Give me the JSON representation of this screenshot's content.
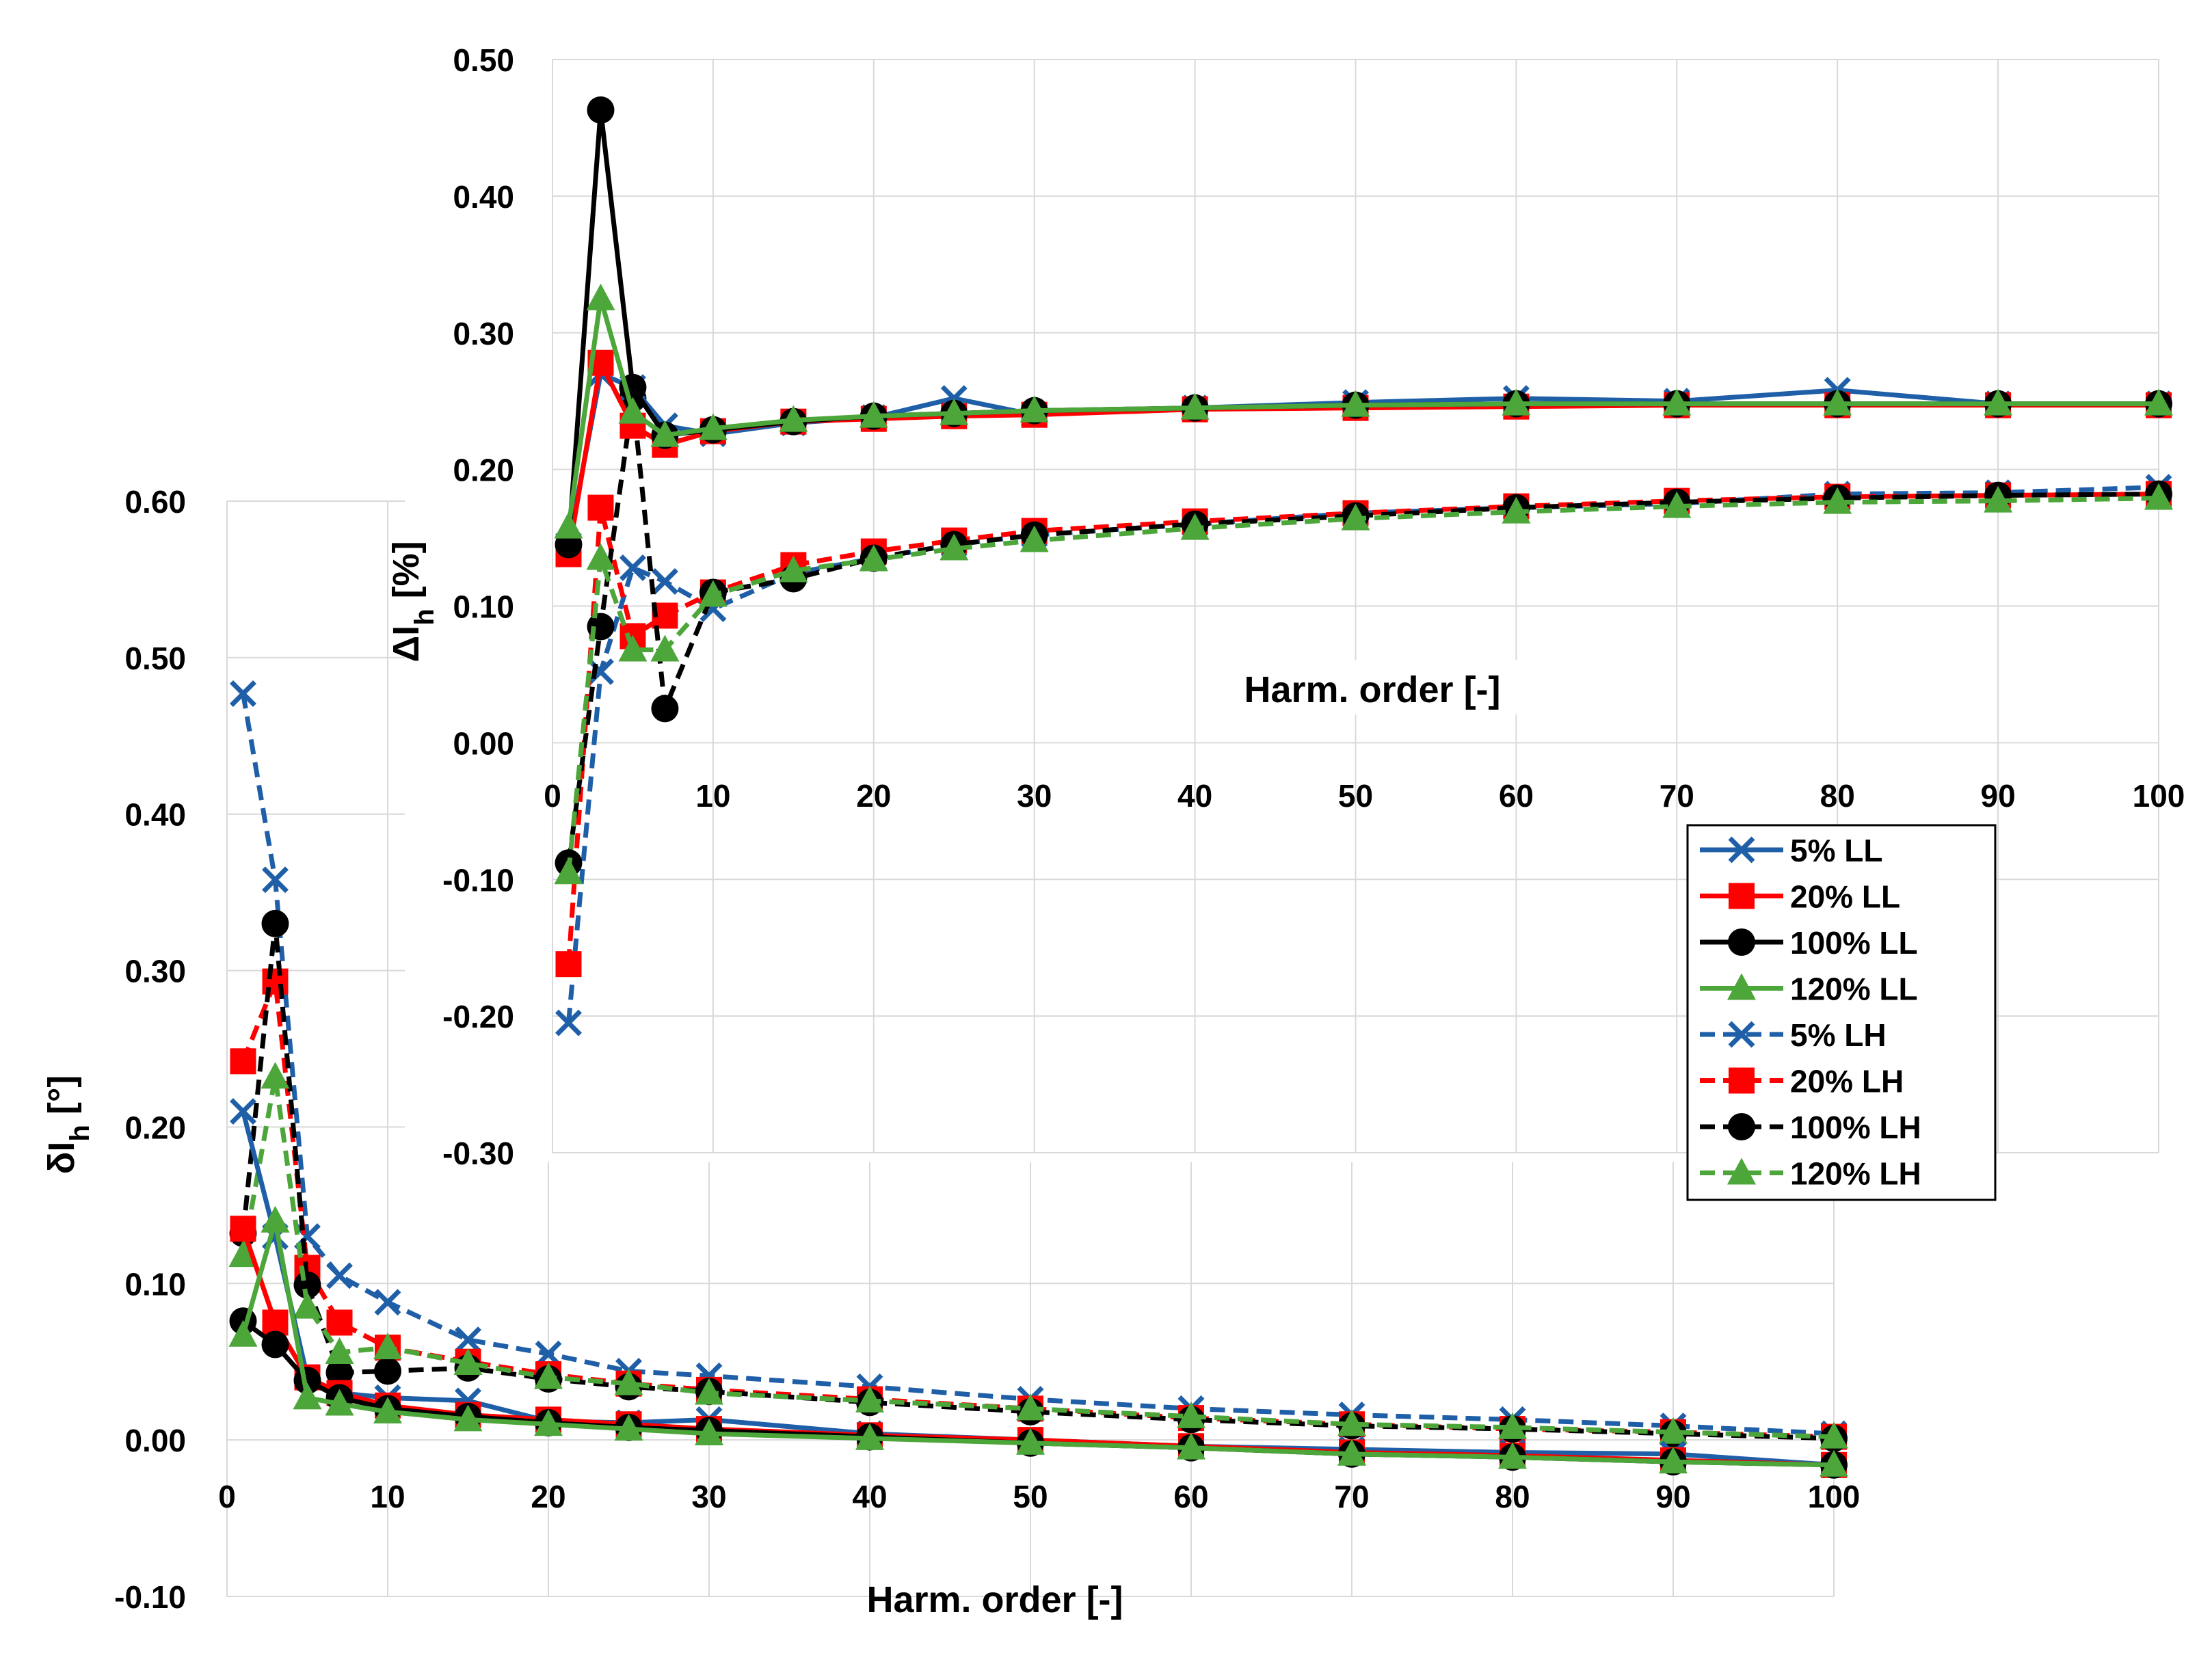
{
  "chart_data": [
    {
      "id": "bottom",
      "type": "line",
      "title": "",
      "xlabel": "Harm. order [-]",
      "ylabel_main": "δI",
      "ylabel_sub": "h",
      "ylabel_unit": " [°]",
      "xlim": [
        0,
        100
      ],
      "ylim": [
        -0.1,
        0.6
      ],
      "xticks": [
        0,
        10,
        20,
        30,
        40,
        50,
        60,
        70,
        80,
        90,
        100
      ],
      "yticks": [
        -0.1,
        0.0,
        0.1,
        0.2,
        0.3,
        0.4,
        0.5,
        0.6
      ],
      "ytick_labels": [
        "-0.10",
        "0.00",
        "0.10",
        "0.20",
        "0.30",
        "0.40",
        "0.50",
        "0.60"
      ],
      "grid": true,
      "x": [
        1,
        3,
        5,
        7,
        10,
        15,
        20,
        25,
        30,
        40,
        50,
        60,
        70,
        80,
        90,
        100
      ],
      "series": [
        {
          "name": "5%  LL",
          "color": "#1f5fa8",
          "marker": "x",
          "dash": false,
          "values": [
            0.21,
            0.13,
            0.04,
            0.03,
            0.027,
            0.025,
            0.012,
            0.011,
            0.013,
            0.004,
            0.0,
            -0.004,
            -0.006,
            -0.008,
            -0.009,
            -0.016
          ]
        },
        {
          "name": "20% LL",
          "color": "#ff0000",
          "marker": "square",
          "dash": false,
          "values": [
            0.135,
            0.075,
            0.04,
            0.03,
            0.022,
            0.016,
            0.013,
            0.01,
            0.007,
            0.003,
            0.0,
            -0.004,
            -0.008,
            -0.01,
            -0.013,
            -0.016
          ]
        },
        {
          "name": "100% LL",
          "color": "#000000",
          "marker": "circle",
          "dash": false,
          "values": [
            0.076,
            0.061,
            0.038,
            0.027,
            0.02,
            0.015,
            0.011,
            0.008,
            0.006,
            0.002,
            -0.002,
            -0.005,
            -0.009,
            -0.011,
            -0.014,
            -0.016
          ]
        },
        {
          "name": "120%  LL",
          "color": "#4ca63a",
          "marker": "triangle",
          "dash": false,
          "values": [
            0.067,
            0.14,
            0.027,
            0.023,
            0.018,
            0.013,
            0.01,
            0.007,
            0.004,
            0.001,
            -0.002,
            -0.005,
            -0.009,
            -0.011,
            -0.014,
            -0.016
          ]
        },
        {
          "name": "5%  LH",
          "color": "#1f5fa8",
          "marker": "x",
          "dash": true,
          "values": [
            0.477,
            0.358,
            0.13,
            0.105,
            0.088,
            0.064,
            0.055,
            0.044,
            0.041,
            0.034,
            0.026,
            0.02,
            0.016,
            0.013,
            0.009,
            0.004
          ]
        },
        {
          "name": "20% LH",
          "color": "#ff0000",
          "marker": "square",
          "dash": true,
          "values": [
            0.242,
            0.293,
            0.11,
            0.075,
            0.059,
            0.05,
            0.042,
            0.036,
            0.032,
            0.026,
            0.02,
            0.014,
            0.01,
            0.007,
            0.005,
            0.002
          ]
        },
        {
          "name": "100% LH",
          "color": "#000000",
          "marker": "circle",
          "dash": true,
          "values": [
            0.132,
            0.33,
            0.099,
            0.043,
            0.044,
            0.046,
            0.039,
            0.034,
            0.031,
            0.024,
            0.018,
            0.013,
            0.009,
            0.007,
            0.004,
            0.001
          ]
        },
        {
          "name": "120%  LH",
          "color": "#4ca63a",
          "marker": "triangle",
          "dash": true,
          "values": [
            0.118,
            0.232,
            0.085,
            0.056,
            0.059,
            0.049,
            0.04,
            0.036,
            0.03,
            0.025,
            0.02,
            0.015,
            0.01,
            0.008,
            0.005,
            0.002
          ]
        }
      ]
    },
    {
      "id": "top",
      "type": "line",
      "title": "",
      "xlabel": "Harm. order [-]",
      "ylabel_main": "ΔI",
      "ylabel_sub": "h",
      "ylabel_unit": " [%]",
      "xlim": [
        0,
        100
      ],
      "ylim": [
        -0.3,
        0.5
      ],
      "xticks": [
        0,
        10,
        20,
        30,
        40,
        50,
        60,
        70,
        80,
        90,
        100
      ],
      "yticks": [
        -0.3,
        -0.2,
        -0.1,
        0.0,
        0.1,
        0.2,
        0.3,
        0.4,
        0.5
      ],
      "ytick_labels": [
        "-0.30",
        "-0.20",
        "-0.10",
        "0.00",
        "0.10",
        "0.20",
        "0.30",
        "0.40",
        "0.50"
      ],
      "grid": true,
      "legend": "bottom-right",
      "x": [
        1,
        3,
        5,
        7,
        10,
        15,
        20,
        25,
        30,
        40,
        50,
        60,
        70,
        80,
        90,
        100
      ],
      "series": [
        {
          "name": "5%  LL",
          "color": "#1f5fa8",
          "marker": "x",
          "dash": false,
          "values": [
            0.145,
            0.27,
            0.26,
            0.232,
            0.226,
            0.234,
            0.238,
            0.252,
            0.24,
            0.245,
            0.249,
            0.252,
            0.25,
            0.258,
            0.248,
            0.248
          ]
        },
        {
          "name": "20% LL",
          "color": "#ff0000",
          "marker": "square",
          "dash": false,
          "values": [
            0.138,
            0.278,
            0.232,
            0.218,
            0.228,
            0.235,
            0.237,
            0.239,
            0.24,
            0.244,
            0.245,
            0.246,
            0.247,
            0.247,
            0.247,
            0.247
          ]
        },
        {
          "name": "100% LL",
          "color": "#000000",
          "marker": "circle",
          "dash": false,
          "values": [
            0.145,
            0.463,
            0.26,
            0.225,
            0.229,
            0.235,
            0.239,
            0.241,
            0.243,
            0.245,
            0.247,
            0.248,
            0.248,
            0.248,
            0.248,
            0.248
          ]
        },
        {
          "name": "120%  LL",
          "color": "#4ca63a",
          "marker": "triangle",
          "dash": false,
          "values": [
            0.158,
            0.325,
            0.242,
            0.225,
            0.23,
            0.236,
            0.239,
            0.241,
            0.243,
            0.245,
            0.247,
            0.248,
            0.248,
            0.248,
            0.248,
            0.248
          ]
        },
        {
          "name": "5%  LH",
          "color": "#1f5fa8",
          "marker": "x",
          "dash": true,
          "values": [
            -0.205,
            0.052,
            0.128,
            0.118,
            0.098,
            0.124,
            0.135,
            0.145,
            0.152,
            0.16,
            0.168,
            0.172,
            0.175,
            0.182,
            0.183,
            0.187
          ]
        },
        {
          "name": "20% LH",
          "color": "#ff0000",
          "marker": "square",
          "dash": true,
          "values": [
            -0.162,
            0.172,
            0.078,
            0.093,
            0.11,
            0.13,
            0.14,
            0.148,
            0.155,
            0.162,
            0.168,
            0.173,
            0.177,
            0.18,
            0.181,
            0.182
          ]
        },
        {
          "name": "100% LH",
          "color": "#000000",
          "marker": "circle",
          "dash": true,
          "values": [
            -0.088,
            0.085,
            0.252,
            0.025,
            0.11,
            0.12,
            0.135,
            0.145,
            0.152,
            0.16,
            0.166,
            0.172,
            0.176,
            0.179,
            0.181,
            0.182
          ]
        },
        {
          "name": "120%  LH",
          "color": "#4ca63a",
          "marker": "triangle",
          "dash": true,
          "values": [
            -0.095,
            0.135,
            0.068,
            0.068,
            0.108,
            0.126,
            0.134,
            0.142,
            0.148,
            0.157,
            0.164,
            0.169,
            0.173,
            0.176,
            0.177,
            0.179
          ]
        }
      ]
    }
  ]
}
